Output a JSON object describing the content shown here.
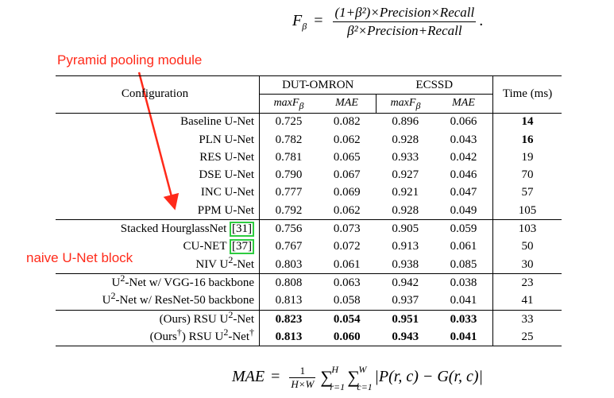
{
  "formula_f": {
    "lhs": "F",
    "lhs_sub": "β",
    "equals": "=",
    "numerator": "(1+β²)×Precision×Recall",
    "denominator": "β²×Precision+Recall",
    "end": "."
  },
  "formula_mae": {
    "lhs": "MAE",
    "equals": "=",
    "frac_num": "1",
    "frac_den": "H×W",
    "sum1_top": "H",
    "sum1_bot": "r=1",
    "sum2_top": "W",
    "sum2_bot": "c=1",
    "body": "|P(r, c) − G(r, c)|"
  },
  "annotations": {
    "pyramid": "Pyramid pooling module",
    "naive": "naive U-Net block",
    "color": "#ff2a1a"
  },
  "table": {
    "header": {
      "configuration": "Configuration",
      "dut": "DUT-OMRON",
      "ecssd": "ECSSD",
      "time": "Time (ms)",
      "maxf": "maxF",
      "maxf_sub": "β",
      "mae": "MAE"
    },
    "rows": [
      {
        "config": "Baseline U-Net",
        "ref": "",
        "v1": "0.725",
        "v2": "0.082",
        "v3": "0.896",
        "v4": "0.066",
        "time": "14"
      },
      {
        "config": "PLN U-Net",
        "ref": "",
        "v1": "0.782",
        "v2": "0.062",
        "v3": "0.928",
        "v4": "0.043",
        "time": "16"
      },
      {
        "config": "RES U-Net",
        "ref": "",
        "v1": "0.781",
        "v2": "0.065",
        "v3": "0.933",
        "v4": "0.042",
        "time": "19"
      },
      {
        "config": "DSE U-Net",
        "ref": "",
        "v1": "0.790",
        "v2": "0.067",
        "v3": "0.927",
        "v4": "0.046",
        "time": "70"
      },
      {
        "config": "INC U-Net",
        "ref": "",
        "v1": "0.777",
        "v2": "0.069",
        "v3": "0.921",
        "v4": "0.047",
        "time": "57"
      },
      {
        "config": "PPM U-Net",
        "ref": "",
        "v1": "0.792",
        "v2": "0.062",
        "v3": "0.928",
        "v4": "0.049",
        "time": "105"
      },
      {
        "config": "Stacked HourglassNet",
        "ref": "[31]",
        "v1": "0.756",
        "v2": "0.073",
        "v3": "0.905",
        "v4": "0.059",
        "time": "103"
      },
      {
        "config": "CU-NET",
        "ref": "[37]",
        "v1": "0.767",
        "v2": "0.072",
        "v3": "0.913",
        "v4": "0.061",
        "time": "50"
      },
      {
        "config": "NIV U",
        "sup": "2",
        "tail": "-Net",
        "v1": "0.803",
        "v2": "0.061",
        "v3": "0.938",
        "v4": "0.085",
        "time": "30"
      },
      {
        "config": "U",
        "sup": "2",
        "tail": "-Net w/ VGG-16 backbone",
        "v1": "0.808",
        "v2": "0.063",
        "v3": "0.942",
        "v4": "0.038",
        "time": "23"
      },
      {
        "config": "U",
        "sup": "2",
        "tail": "-Net w/ ResNet-50 backbone",
        "v1": "0.813",
        "v2": "0.058",
        "v3": "0.937",
        "v4": "0.041",
        "time": "41"
      },
      {
        "config": "(Ours) RSU U",
        "sup": "2",
        "tail": "-Net",
        "v1": "0.823",
        "v2": "0.054",
        "v3": "0.951",
        "v4": "0.033",
        "time": "33"
      },
      {
        "config": "(Ours",
        "dag1": "†",
        "mid": ") RSU U",
        "sup": "2",
        "tail": "-Net",
        "dag2": "†",
        "v1": "0.813",
        "v2": "0.060",
        "v3": "0.943",
        "v4": "0.041",
        "time": "25"
      }
    ],
    "ref_box_color": "#2ecc40"
  }
}
